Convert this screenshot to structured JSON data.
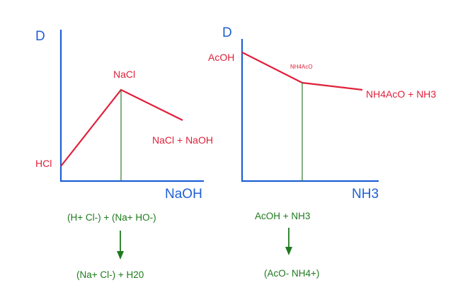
{
  "colors": {
    "axis": "#1f5fd6",
    "curve": "#e0203a",
    "equiv": "#2e7d2e",
    "reaction": "#1e7a1e"
  },
  "left_panel": {
    "y_axis_label": "D",
    "x_axis_label": "NaOH",
    "start_label": "HCl",
    "peak_label": "NaCl",
    "end_label": "NaCl + NaOH",
    "reaction_reactants": "(H+ Cl-) + (Na+ HO-)",
    "reaction_products": "(Na+ Cl-) + H20",
    "arrow_icon": "arrow-down-icon"
  },
  "right_panel": {
    "y_axis_label": "D",
    "x_axis_label": "NH3",
    "start_label": "AcOH",
    "break_label": "NH4AcO",
    "end_label": "NH4AcO + NH3",
    "reaction_reactants": "AcOH + NH3",
    "reaction_products": "(AcO- NH4+)",
    "arrow_icon": "arrow-down-icon"
  }
}
